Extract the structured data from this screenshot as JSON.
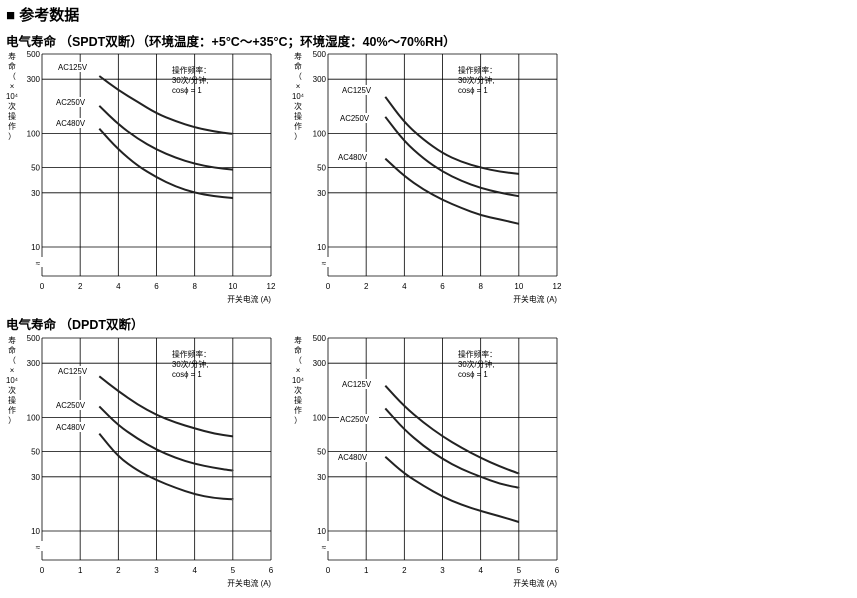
{
  "section_title": "■ 参考数据",
  "subtitle_spdt": "电气寿命 （SPDT双断）（环境温度：+5°C～+35°C；环境湿度：40%～70%RH）",
  "subtitle_dpdt": "电气寿命 （DPDT双断）",
  "chart_data": [
    {
      "type": "line",
      "id": "spdt_left",
      "ylabel": "寿命（×10⁴次操作）",
      "xlabel": "开关电流 (A)",
      "xlim": [
        0,
        12
      ],
      "xticks": [
        0,
        2,
        4,
        6,
        8,
        10,
        12
      ],
      "ylim": [
        10,
        500
      ],
      "yscale": "log",
      "yticks": [
        10,
        30,
        50,
        100,
        300,
        500
      ],
      "annotation": [
        "操作频率：",
        "30次/分钟,",
        "cosϕ = 1"
      ],
      "series": [
        {
          "name": "AC125V",
          "x": [
            3,
            4,
            5,
            6,
            7,
            8,
            9,
            10
          ],
          "y": [
            320,
            240,
            190,
            150,
            128,
            113,
            104,
            99
          ]
        },
        {
          "name": "AC250V",
          "x": [
            3,
            4,
            5,
            6,
            7,
            8,
            9,
            10
          ],
          "y": [
            175,
            120,
            90,
            72,
            61,
            54,
            50,
            48
          ]
        },
        {
          "name": "AC480V",
          "x": [
            3,
            4,
            5,
            6,
            7,
            8,
            9,
            10
          ],
          "y": [
            110,
            72,
            52,
            41,
            34,
            30,
            28,
            27
          ]
        }
      ]
    },
    {
      "type": "line",
      "id": "spdt_right",
      "ylabel": "寿命（×10⁴次操作）",
      "xlabel": "开关电流 (A)",
      "xlim": [
        0,
        12
      ],
      "xticks": [
        0,
        2,
        4,
        6,
        8,
        10,
        12
      ],
      "ylim": [
        10,
        500
      ],
      "yscale": "log",
      "yticks": [
        10,
        30,
        50,
        100,
        300,
        500
      ],
      "annotation": [
        "操作频率：",
        "30次/分钟,",
        "cosϕ = 1"
      ],
      "series": [
        {
          "name": "AC125V",
          "x": [
            3,
            4,
            5,
            6,
            7,
            8,
            9,
            10
          ],
          "y": [
            210,
            125,
            88,
            67,
            56,
            50,
            46,
            44
          ]
        },
        {
          "name": "AC250V",
          "x": [
            3,
            4,
            5,
            6,
            7,
            8,
            9,
            10
          ],
          "y": [
            140,
            85,
            60,
            46,
            38,
            33,
            30,
            28
          ]
        },
        {
          "name": "AC480V",
          "x": [
            3,
            4,
            5,
            6,
            7,
            8,
            9,
            10
          ],
          "y": [
            60,
            42,
            32,
            26,
            22,
            19,
            17.5,
            16
          ]
        }
      ]
    },
    {
      "type": "line",
      "id": "dpdt_left",
      "ylabel": "寿命（×10⁴次操作）",
      "xlabel": "开关电流 (A)",
      "xlim": [
        0,
        6
      ],
      "xticks": [
        0,
        1,
        2,
        3,
        4,
        5,
        6
      ],
      "ylim": [
        10,
        500
      ],
      "yscale": "log",
      "yticks": [
        10,
        30,
        50,
        100,
        300,
        500
      ],
      "annotation": [
        "操作频率：",
        "30次/分钟,",
        "cosϕ = 1"
      ],
      "series": [
        {
          "name": "AC125V",
          "x": [
            1.5,
            2,
            2.5,
            3,
            3.5,
            4,
            4.5,
            5
          ],
          "y": [
            230,
            170,
            130,
            105,
            90,
            80,
            72,
            68
          ]
        },
        {
          "name": "AC250V",
          "x": [
            1.5,
            2,
            2.5,
            3,
            3.5,
            4,
            4.5,
            5
          ],
          "y": [
            125,
            85,
            65,
            52,
            44,
            39,
            36,
            34
          ]
        },
        {
          "name": "AC480V",
          "x": [
            1.5,
            2,
            2.5,
            3,
            3.5,
            4,
            4.5,
            5
          ],
          "y": [
            72,
            45,
            34,
            28,
            24,
            21,
            19.5,
            19
          ]
        }
      ]
    },
    {
      "type": "line",
      "id": "dpdt_right",
      "ylabel": "寿命（×10⁴次操作）",
      "xlabel": "开关电流 (A)",
      "xlim": [
        0,
        6
      ],
      "xticks": [
        0,
        1,
        2,
        3,
        4,
        5,
        6
      ],
      "ylim": [
        10,
        500
      ],
      "yscale": "log",
      "yticks": [
        10,
        30,
        50,
        100,
        300,
        500
      ],
      "annotation": [
        "操作频率：",
        "30次/分钟,",
        "cosϕ = 1"
      ],
      "series": [
        {
          "name": "AC125V",
          "x": [
            1.5,
            2,
            2.5,
            3,
            3.5,
            4,
            4.5,
            5
          ],
          "y": [
            190,
            125,
            90,
            68,
            54,
            44,
            37,
            32
          ]
        },
        {
          "name": "AC250V",
          "x": [
            1.5,
            2,
            2.5,
            3,
            3.5,
            4,
            4.5,
            5
          ],
          "y": [
            120,
            78,
            56,
            43,
            35,
            30,
            26,
            24
          ]
        },
        {
          "name": "AC480V",
          "x": [
            1.5,
            2,
            2.5,
            3,
            3.5,
            4,
            4.5,
            5
          ],
          "y": [
            45,
            32,
            25,
            20,
            17,
            15,
            13.5,
            12
          ]
        }
      ]
    }
  ]
}
